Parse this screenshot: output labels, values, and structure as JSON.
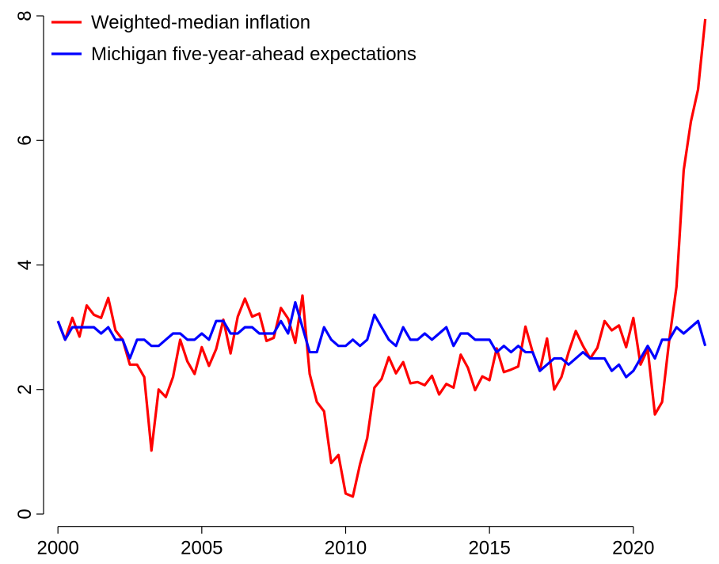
{
  "chart_data": {
    "type": "line",
    "x": [
      2000,
      2000.25,
      2000.5,
      2000.75,
      2001,
      2001.25,
      2001.5,
      2001.75,
      2002,
      2002.25,
      2002.5,
      2002.75,
      2003,
      2003.25,
      2003.5,
      2003.75,
      2004,
      2004.25,
      2004.5,
      2004.75,
      2005,
      2005.25,
      2005.5,
      2005.75,
      2006,
      2006.25,
      2006.5,
      2006.75,
      2007,
      2007.25,
      2007.5,
      2007.75,
      2008,
      2008.25,
      2008.5,
      2008.75,
      2009,
      2009.25,
      2009.5,
      2009.75,
      2010,
      2010.25,
      2010.5,
      2010.75,
      2011,
      2011.25,
      2011.5,
      2011.75,
      2012,
      2012.25,
      2012.5,
      2012.75,
      2013,
      2013.25,
      2013.5,
      2013.75,
      2014,
      2014.25,
      2014.5,
      2014.75,
      2015,
      2015.25,
      2015.5,
      2015.75,
      2016,
      2016.25,
      2016.5,
      2016.75,
      2017,
      2017.25,
      2017.5,
      2017.75,
      2018,
      2018.25,
      2018.5,
      2018.75,
      2019,
      2019.25,
      2019.5,
      2019.75,
      2020,
      2020.25,
      2020.5,
      2020.75,
      2021,
      2021.25,
      2021.5,
      2021.75,
      2022,
      2022.25,
      2022.5
    ],
    "series": [
      {
        "name": "Weighted-median inflation",
        "color": "#ff0000",
        "values": [
          3.1,
          2.8,
          3.15,
          2.85,
          3.35,
          3.2,
          3.15,
          3.47,
          2.95,
          2.8,
          2.4,
          2.4,
          2.2,
          1.02,
          2.0,
          1.88,
          2.2,
          2.8,
          2.45,
          2.25,
          2.68,
          2.38,
          2.65,
          3.12,
          2.58,
          3.17,
          3.46,
          3.17,
          3.22,
          2.78,
          2.83,
          3.31,
          3.14,
          2.75,
          3.51,
          2.25,
          1.8,
          1.65,
          0.82,
          0.95,
          0.33,
          0.28,
          0.8,
          1.22,
          2.03,
          2.17,
          2.52,
          2.26,
          2.44,
          2.1,
          2.12,
          2.07,
          2.22,
          1.92,
          2.09,
          2.03,
          2.56,
          2.35,
          1.99,
          2.21,
          2.15,
          2.66,
          2.28,
          2.32,
          2.37,
          3.01,
          2.6,
          2.3,
          2.82,
          2.0,
          2.2,
          2.6,
          2.94,
          2.7,
          2.5,
          2.67,
          3.1,
          2.95,
          3.03,
          2.68,
          3.15,
          2.4,
          2.65,
          1.6,
          1.8,
          2.8,
          3.65,
          5.52,
          6.3,
          6.82,
          7.95
        ]
      },
      {
        "name": "Michigan five-year-ahead expectations",
        "color": "#0000ff",
        "values": [
          3.1,
          2.8,
          3.0,
          3.0,
          3.0,
          3.0,
          2.9,
          3.0,
          2.8,
          2.8,
          2.5,
          2.8,
          2.8,
          2.7,
          2.7,
          2.8,
          2.9,
          2.9,
          2.8,
          2.8,
          2.9,
          2.8,
          3.1,
          3.1,
          2.9,
          2.9,
          3.0,
          3.0,
          2.9,
          2.9,
          2.9,
          3.1,
          2.9,
          3.4,
          3.0,
          2.6,
          2.6,
          3.0,
          2.8,
          2.7,
          2.7,
          2.8,
          2.7,
          2.8,
          3.2,
          3.0,
          2.8,
          2.7,
          3.0,
          2.8,
          2.8,
          2.9,
          2.8,
          2.9,
          3.0,
          2.7,
          2.9,
          2.9,
          2.8,
          2.8,
          2.8,
          2.6,
          2.7,
          2.6,
          2.7,
          2.6,
          2.6,
          2.3,
          2.4,
          2.5,
          2.5,
          2.4,
          2.5,
          2.6,
          2.5,
          2.5,
          2.5,
          2.3,
          2.4,
          2.2,
          2.3,
          2.5,
          2.7,
          2.5,
          2.8,
          2.8,
          3.0,
          2.9,
          3.0,
          3.1,
          2.7
        ]
      }
    ],
    "xlim": [
      1999.5,
      2022.95
    ],
    "ylim": [
      -0.2,
      8.2
    ],
    "xticks": [
      2000,
      2005,
      2010,
      2015,
      2020
    ],
    "yticks": [
      0,
      2,
      4,
      6,
      8
    ],
    "legend": "top-left"
  }
}
